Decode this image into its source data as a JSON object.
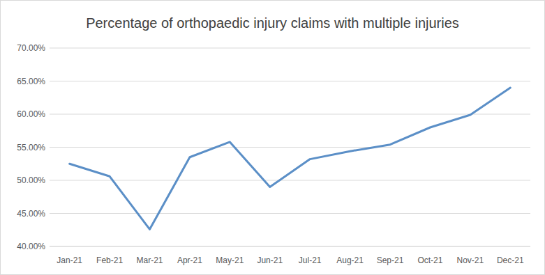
{
  "chart_data": {
    "type": "line",
    "title": "Percentage of orthopaedic injury claims with multiple injuries",
    "categories": [
      "Jan-21",
      "Feb-21",
      "Mar-21",
      "Apr-21",
      "May-21",
      "Jun-21",
      "Jul-21",
      "Aug-21",
      "Sep-21",
      "Oct-21",
      "Nov-21",
      "Dec-21"
    ],
    "values": [
      52.5,
      50.6,
      42.6,
      53.5,
      55.8,
      49.0,
      53.2,
      54.4,
      55.4,
      58.0,
      59.9,
      64.0
    ],
    "color": "#5b8fc7",
    "ylim": [
      40,
      70
    ],
    "yticks": [
      {
        "value": 40,
        "label": "40.00%"
      },
      {
        "value": 45,
        "label": "45.00%"
      },
      {
        "value": 50,
        "label": "50.00%"
      },
      {
        "value": 55,
        "label": "55.00%"
      },
      {
        "value": 60,
        "label": "60.00%"
      },
      {
        "value": 65,
        "label": "65.00%"
      },
      {
        "value": 70,
        "label": "70.00%"
      }
    ],
    "grid": true
  }
}
